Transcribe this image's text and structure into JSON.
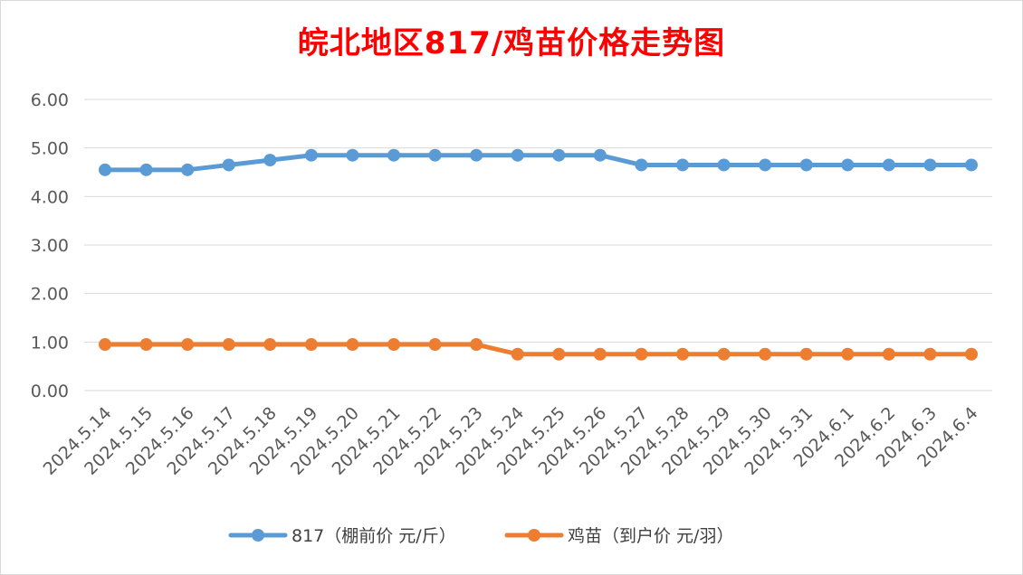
{
  "chart_data": {
    "type": "line",
    "title": "皖北地区817/鸡苗价格走势图",
    "title_color": "#ff0000",
    "x": [
      "2024.5.14",
      "2024.5.15",
      "2024.5.16",
      "2024.5.17",
      "2024.5.18",
      "2024.5.19",
      "2024.5.20",
      "2024.5.21",
      "2024.5.22",
      "2024.5.23",
      "2024.5.24",
      "2024.5.25",
      "2024.5.26",
      "2024.5.27",
      "2024.5.28",
      "2024.5.29",
      "2024.5.30",
      "2024.5.31",
      "2024.6.1",
      "2024.6.2",
      "2024.6.3",
      "2024.6.4"
    ],
    "yticks": [
      "0.00",
      "1.00",
      "2.00",
      "3.00",
      "4.00",
      "5.00",
      "6.00"
    ],
    "ylim": [
      0,
      6
    ],
    "grid": true,
    "legend_position": "bottom",
    "series": [
      {
        "name": "817（棚前价 元/斤）",
        "color": "#5b9bd5",
        "values": [
          4.55,
          4.55,
          4.55,
          4.65,
          4.75,
          4.85,
          4.85,
          4.85,
          4.85,
          4.85,
          4.85,
          4.85,
          4.85,
          4.65,
          4.65,
          4.65,
          4.65,
          4.65,
          4.65,
          4.65,
          4.65,
          4.65
        ]
      },
      {
        "name": "鸡苗（到户价 元/羽）",
        "color": "#ed7d31",
        "values": [
          0.95,
          0.95,
          0.95,
          0.95,
          0.95,
          0.95,
          0.95,
          0.95,
          0.95,
          0.95,
          0.75,
          0.75,
          0.75,
          0.75,
          0.75,
          0.75,
          0.75,
          0.75,
          0.75,
          0.75,
          0.75,
          0.75
        ]
      }
    ]
  }
}
